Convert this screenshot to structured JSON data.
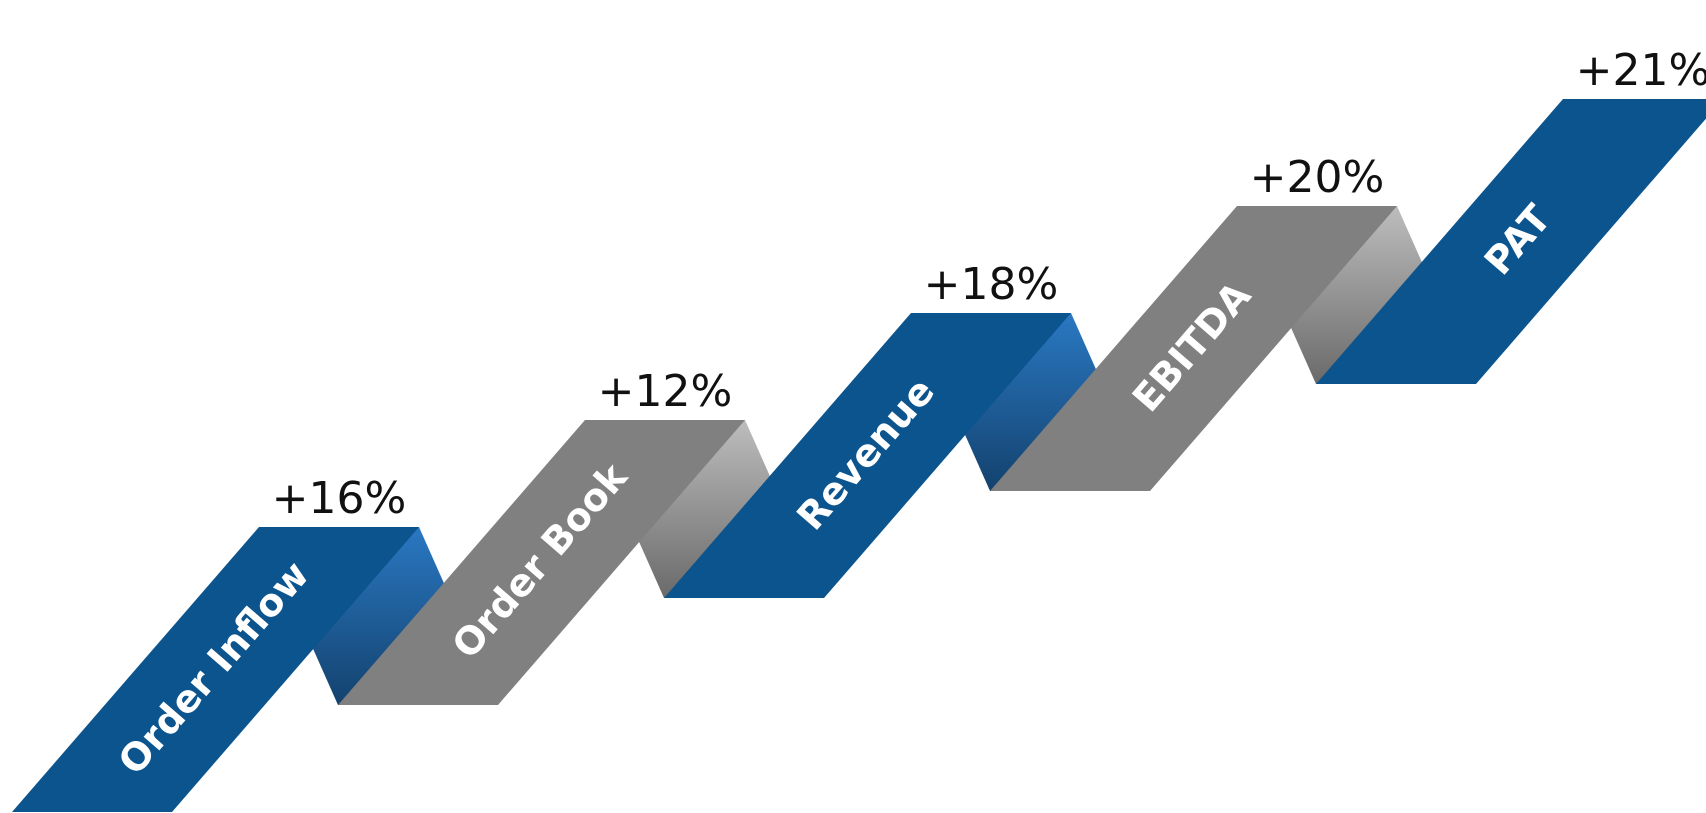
{
  "colors": {
    "blue": "#0b548e",
    "gray": "#808080",
    "blue_fold_light": "#2a78c2",
    "blue_fold_dark": "#13426e",
    "gray_fold_light": "#bdbdbd",
    "gray_fold_dark": "#6a6a6a",
    "text_on_ribbon": "#ffffff",
    "text_percent": "#111111"
  },
  "segments": [
    {
      "label": "Order Inflow",
      "percent": "+16%",
      "color": "blue"
    },
    {
      "label": "Order Book",
      "percent": "+12%",
      "color": "gray"
    },
    {
      "label": "Revenue",
      "percent": "+18%",
      "color": "blue"
    },
    {
      "label": "EBITDA",
      "percent": "+20%",
      "color": "gray"
    },
    {
      "label": "PAT",
      "percent": "+21%",
      "color": "blue"
    }
  ]
}
